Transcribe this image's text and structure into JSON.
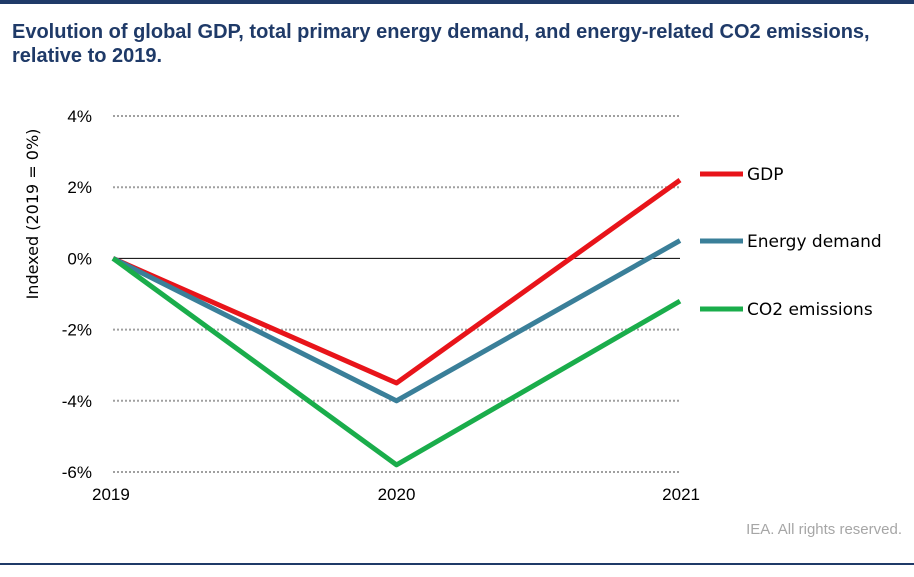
{
  "header": {
    "title": "Evolution of global GDP, total primary energy demand, and energy-related CO2 emissions, relative to 2019."
  },
  "footer": {
    "credit": "IEA. All rights reserved."
  },
  "chart_data": {
    "type": "line",
    "title": "Evolution of global GDP, total primary energy demand, and energy-related CO2 emissions, relative to 2019.",
    "xlabel": "",
    "ylabel": "Indexed (2019 = 0%)",
    "x": [
      "2019",
      "2020",
      "2021"
    ],
    "ylim": [
      -6,
      4
    ],
    "yticks": [
      4,
      2,
      0,
      -2,
      -4,
      -6
    ],
    "ytick_labels": [
      "4%",
      "2%",
      "0%",
      "-2%",
      "-4%",
      "-6%"
    ],
    "grid": "dotted horizontal",
    "legend_position": "right",
    "series": [
      {
        "name": "GDP",
        "color": "#e8141a",
        "values": [
          0,
          -3.5,
          2.2
        ]
      },
      {
        "name": "Energy demand",
        "color": "#3a7f99",
        "values": [
          0,
          -4.0,
          0.5
        ]
      },
      {
        "name": "CO2 emissions",
        "color": "#1aad4b",
        "values": [
          0,
          -5.8,
          -1.2
        ]
      }
    ]
  }
}
